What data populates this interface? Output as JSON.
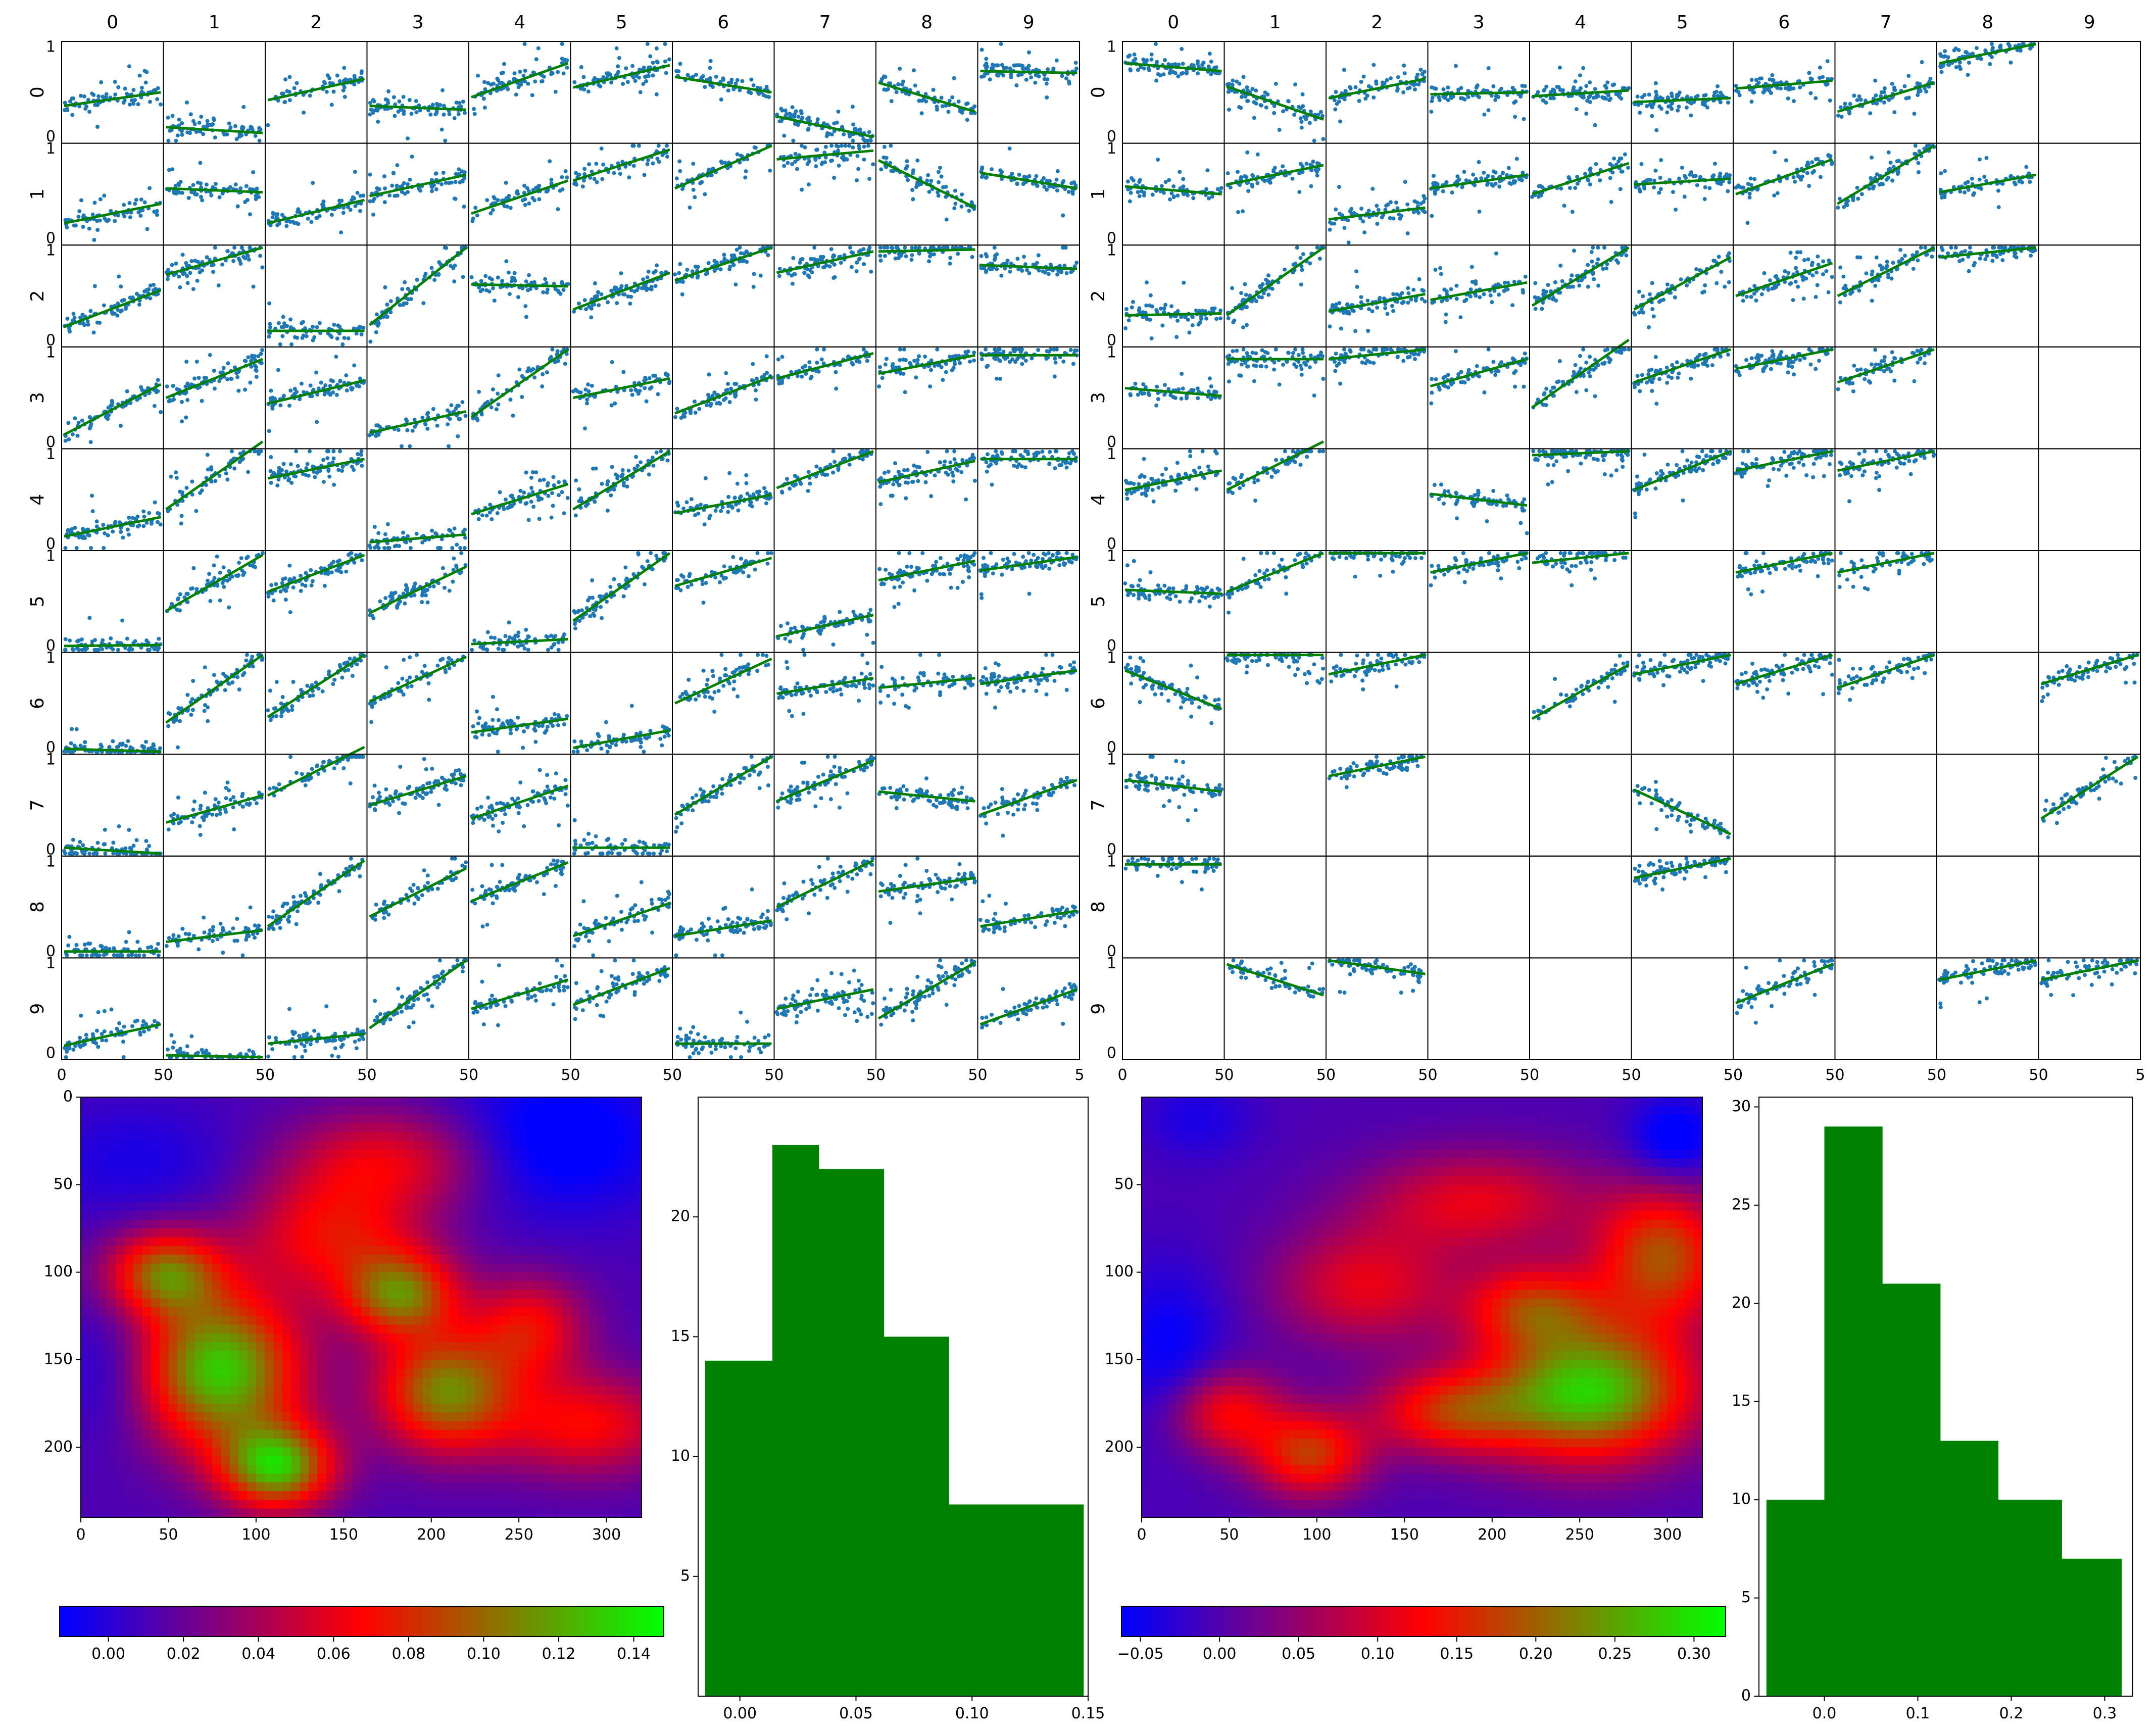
{
  "colors": {
    "scatter": "#1f77b4",
    "fit_line": "#008000",
    "hist": "#008000",
    "cmap": [
      "#0000ff",
      "#ff0000",
      "#00ff00"
    ]
  },
  "chart_data": [
    {
      "type": "scatter",
      "panel": "matrix-left",
      "column_headers": [
        "0",
        "1",
        "2",
        "3",
        "4",
        "5",
        "6",
        "7",
        "8",
        "9"
      ],
      "row_labels": [
        "0",
        "1",
        "2",
        "3",
        "4",
        "5",
        "6",
        "7",
        "8",
        "9"
      ],
      "ylim": [
        0,
        1
      ],
      "yticks": [
        "0",
        "1"
      ],
      "xlim": [
        0,
        50
      ],
      "xticks": [
        "0",
        "50",
        "50",
        "50",
        "50",
        "50",
        "50",
        "50",
        "50",
        "50",
        "5"
      ],
      "fit_lines": [
        [
          [
            0.36,
            0.5
          ],
          [
            0.14,
            0.08
          ],
          [
            0.42,
            0.64
          ],
          [
            0.36,
            0.32
          ],
          [
            0.45,
            0.8
          ],
          [
            0.55,
            0.78
          ],
          [
            0.66,
            0.5
          ],
          [
            0.25,
            0.04
          ],
          [
            0.6,
            0.3
          ],
          [
            0.72,
            0.7
          ]
        ],
        [
          [
            0.2,
            0.4
          ],
          [
            0.56,
            0.52
          ],
          [
            0.2,
            0.44
          ],
          [
            0.48,
            0.7
          ],
          [
            0.3,
            0.64
          ],
          [
            0.64,
            0.96
          ],
          [
            0.56,
            1.0
          ],
          [
            0.86,
            0.95
          ],
          [
            0.85,
            0.36
          ],
          [
            0.72,
            0.56
          ]
        ],
        [
          [
            0.18,
            0.56
          ],
          [
            0.72,
            1.0
          ],
          [
            0.14,
            0.14
          ],
          [
            0.2,
            1.0
          ],
          [
            0.62,
            0.6
          ],
          [
            0.36,
            0.74
          ],
          [
            0.66,
            1.0
          ],
          [
            0.74,
            0.96
          ],
          [
            0.96,
            0.98
          ],
          [
            0.82,
            0.78
          ]
        ],
        [
          [
            0.12,
            0.64
          ],
          [
            0.5,
            0.9
          ],
          [
            0.44,
            0.68
          ],
          [
            0.14,
            0.36
          ],
          [
            0.3,
            1.0
          ],
          [
            0.5,
            0.7
          ],
          [
            0.34,
            0.72
          ],
          [
            0.7,
            0.96
          ],
          [
            0.75,
            0.94
          ],
          [
            0.94,
            0.94
          ]
        ],
        [
          [
            0.12,
            0.32
          ],
          [
            0.4,
            1.1
          ],
          [
            0.72,
            0.92
          ],
          [
            0.06,
            0.14
          ],
          [
            0.35,
            0.66
          ],
          [
            0.4,
            1.0
          ],
          [
            0.36,
            0.55
          ],
          [
            0.62,
            1.0
          ],
          [
            0.68,
            0.9
          ],
          [
            0.92,
            0.92
          ]
        ],
        [
          [
            0.04,
            0.05
          ],
          [
            0.4,
            0.98
          ],
          [
            0.6,
            0.98
          ],
          [
            0.38,
            0.86
          ],
          [
            0.06,
            0.11
          ],
          [
            0.3,
            1.0
          ],
          [
            0.66,
            0.95
          ],
          [
            0.14,
            0.36
          ],
          [
            0.72,
            0.92
          ],
          [
            0.82,
            0.96
          ]
        ],
        [
          [
            0.03,
            0.0
          ],
          [
            0.3,
            1.0
          ],
          [
            0.36,
            1.0
          ],
          [
            0.52,
            0.98
          ],
          [
            0.2,
            0.34
          ],
          [
            0.04,
            0.22
          ],
          [
            0.5,
            0.96
          ],
          [
            0.6,
            0.76
          ],
          [
            0.66,
            0.76
          ],
          [
            0.7,
            0.84
          ]
        ],
        [
          [
            0.06,
            0.0
          ],
          [
            0.32,
            0.6
          ],
          [
            0.6,
            1.1
          ],
          [
            0.5,
            0.8
          ],
          [
            0.36,
            0.7
          ],
          [
            0.06,
            0.06
          ],
          [
            0.4,
            1.0
          ],
          [
            0.54,
            0.96
          ],
          [
            0.64,
            0.54
          ],
          [
            0.4,
            0.76
          ]
        ],
        [
          [
            0.04,
            0.04
          ],
          [
            0.14,
            0.26
          ],
          [
            0.3,
            0.98
          ],
          [
            0.4,
            0.9
          ],
          [
            0.56,
            0.96
          ],
          [
            0.2,
            0.54
          ],
          [
            0.2,
            0.36
          ],
          [
            0.5,
            0.98
          ],
          [
            0.66,
            0.8
          ],
          [
            0.3,
            0.46
          ]
        ],
        [
          [
            0.12,
            0.34
          ],
          [
            0.02,
            0.0
          ],
          [
            0.14,
            0.24
          ],
          [
            0.3,
            1.0
          ],
          [
            0.5,
            0.8
          ],
          [
            0.54,
            0.92
          ],
          [
            0.14,
            0.14
          ],
          [
            0.5,
            0.7
          ],
          [
            0.4,
            0.98
          ],
          [
            0.34,
            0.7
          ]
        ]
      ]
    },
    {
      "type": "scatter",
      "panel": "matrix-right",
      "column_headers": [
        "0",
        "1",
        "2",
        "3",
        "4",
        "5",
        "6",
        "7",
        "8",
        "9"
      ],
      "row_labels": [
        "0",
        "1",
        "2",
        "3",
        "4",
        "5",
        "6",
        "7",
        "8",
        "9"
      ],
      "ylim": [
        0,
        1
      ],
      "yticks": [
        "0",
        "1"
      ],
      "xlim": [
        0,
        50
      ],
      "xticks": [
        "0",
        "50",
        "50",
        "50",
        "50",
        "50",
        "50",
        "50",
        "50",
        "50",
        "5"
      ],
      "fit_lines": [
        [
          [
            0.8,
            0.72
          ],
          [
            0.56,
            0.22
          ],
          [
            0.44,
            0.64
          ],
          [
            0.48,
            0.5
          ],
          [
            0.46,
            0.52
          ],
          [
            0.4,
            0.44
          ],
          [
            0.54,
            0.62
          ],
          [
            0.3,
            0.6
          ],
          [
            0.8,
            1.0
          ],
          null
        ],
        [
          [
            0.58,
            0.5
          ],
          [
            0.6,
            0.8
          ],
          [
            0.24,
            0.36
          ],
          [
            0.56,
            0.7
          ],
          [
            0.5,
            0.82
          ],
          [
            0.6,
            0.66
          ],
          [
            0.5,
            0.86
          ],
          [
            0.4,
            1.0
          ],
          [
            0.52,
            0.7
          ],
          null
        ],
        [
          [
            0.3,
            0.32
          ],
          [
            0.3,
            1.0
          ],
          [
            0.34,
            0.52
          ],
          [
            0.46,
            0.64
          ],
          [
            0.4,
            1.0
          ],
          [
            0.36,
            0.9
          ],
          [
            0.5,
            0.84
          ],
          [
            0.5,
            1.0
          ],
          [
            0.9,
            1.0
          ],
          null
        ],
        [
          [
            0.6,
            0.52
          ],
          [
            0.9,
            0.9
          ],
          [
            0.9,
            1.0
          ],
          [
            0.62,
            0.9
          ],
          [
            0.4,
            1.1
          ],
          [
            0.66,
            1.0
          ],
          [
            0.8,
            1.0
          ],
          [
            0.66,
            1.0
          ],
          null,
          null
        ],
        [
          [
            0.6,
            0.8
          ],
          [
            0.6,
            1.1
          ],
          null,
          [
            0.56,
            0.44
          ],
          [
            0.96,
            1.0
          ],
          [
            0.6,
            1.0
          ],
          [
            0.8,
            1.0
          ],
          [
            0.8,
            1.0
          ],
          null,
          null
        ],
        [
          [
            0.62,
            0.58
          ],
          [
            0.6,
            1.0
          ],
          [
            1.0,
            1.0
          ],
          [
            0.8,
            1.0
          ],
          [
            0.9,
            1.0
          ],
          null,
          [
            0.8,
            1.0
          ],
          [
            0.8,
            1.0
          ],
          null,
          null
        ],
        [
          [
            0.84,
            0.44
          ],
          [
            1.0,
            1.0
          ],
          [
            0.8,
            1.0
          ],
          null,
          [
            0.34,
            0.9
          ],
          [
            0.8,
            1.0
          ],
          [
            0.7,
            1.0
          ],
          [
            0.66,
            1.0
          ],
          null,
          [
            0.7,
            1.0
          ]
        ],
        [
          [
            0.76,
            0.64
          ],
          null,
          [
            0.8,
            1.0
          ],
          null,
          null,
          [
            0.66,
            0.2
          ],
          null,
          null,
          null,
          [
            0.36,
            1.0
          ]
        ],
        [
          [
            0.94,
            0.94
          ],
          null,
          null,
          null,
          null,
          [
            0.8,
            1.0
          ],
          null,
          null,
          null,
          null
        ],
        [
          null,
          [
            0.96,
            0.64
          ],
          [
            1.0,
            0.86
          ],
          null,
          null,
          null,
          [
            0.56,
            0.96
          ],
          null,
          [
            0.8,
            1.0
          ],
          [
            0.8,
            1.0
          ]
        ]
      ]
    },
    {
      "type": "heatmap",
      "panel": "heatmap-left",
      "xlim": [
        0,
        320
      ],
      "ylim": [
        240,
        0
      ],
      "xticks": [
        "0",
        "50",
        "100",
        "150",
        "200",
        "250",
        "300"
      ],
      "yticks": [
        "0",
        "50",
        "100",
        "150",
        "200"
      ],
      "colorbar": {
        "range": [
          -0.013,
          0.148
        ],
        "ticks": [
          "0.00",
          "0.02",
          "0.04",
          "0.06",
          "0.08",
          "0.10",
          "0.12",
          "0.14"
        ]
      }
    },
    {
      "type": "bar",
      "panel": "hist-left",
      "bins": [
        {
          "x0": -0.015,
          "x1": 0.014,
          "count": 14
        },
        {
          "x0": 0.014,
          "x1": 0.034,
          "count": 23
        },
        {
          "x0": 0.034,
          "x1": 0.062,
          "count": 22
        },
        {
          "x0": 0.062,
          "x1": 0.09,
          "count": 15
        },
        {
          "x0": 0.09,
          "x1": 0.148,
          "count": 8
        }
      ],
      "xlim": [
        -0.018,
        0.15
      ],
      "ylim": [
        0,
        25
      ],
      "xticks": [
        "0.00",
        "0.05",
        "0.10",
        "0.15"
      ],
      "yticks": [
        "5",
        "10",
        "15",
        "20"
      ]
    },
    {
      "type": "heatmap",
      "panel": "heatmap-right",
      "xlim": [
        0,
        320
      ],
      "ylim": [
        240,
        0
      ],
      "xticks": [
        "0",
        "50",
        "100",
        "150",
        "200",
        "250",
        "300"
      ],
      "yticks": [
        "50",
        "100",
        "150",
        "200"
      ],
      "colorbar": {
        "range": [
          -0.062,
          0.32
        ],
        "ticks": [
          "−0.05",
          "0.00",
          "0.05",
          "0.10",
          "0.15",
          "0.20",
          "0.25",
          "0.30"
        ]
      }
    },
    {
      "type": "bar",
      "panel": "hist-right",
      "bins": [
        {
          "x0": -0.062,
          "x1": 0.0,
          "count": 10
        },
        {
          "x0": 0.0,
          "x1": 0.062,
          "count": 29
        },
        {
          "x0": 0.062,
          "x1": 0.124,
          "count": 21
        },
        {
          "x0": 0.124,
          "x1": 0.186,
          "count": 13
        },
        {
          "x0": 0.186,
          "x1": 0.254,
          "count": 10
        },
        {
          "x0": 0.254,
          "x1": 0.318,
          "count": 7
        }
      ],
      "xlim": [
        -0.07,
        0.33
      ],
      "ylim": [
        0,
        30.5
      ],
      "xticks": [
        "0.0",
        "0.1",
        "0.2",
        "0.3"
      ],
      "yticks": [
        "0",
        "5",
        "10",
        "15",
        "20",
        "25",
        "30"
      ]
    }
  ]
}
